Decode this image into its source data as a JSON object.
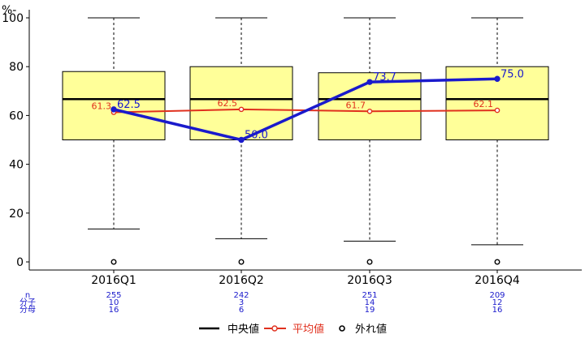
{
  "chart_data": {
    "type": "box",
    "ylabel": "%-",
    "ylim": [
      0,
      100
    ],
    "yticks": [
      0,
      20,
      40,
      60,
      80,
      100
    ],
    "categories": [
      "2016Q1",
      "2016Q2",
      "2016Q3",
      "2016Q4"
    ],
    "boxes": [
      {
        "whisker_low": 13.5,
        "q1": 50,
        "median": 66.7,
        "q3": 78,
        "whisker_high": 100,
        "outliers": [
          0
        ]
      },
      {
        "whisker_low": 9.5,
        "q1": 50,
        "median": 66.7,
        "q3": 80,
        "whisker_high": 100,
        "outliers": [
          0
        ]
      },
      {
        "whisker_low": 8.5,
        "q1": 50,
        "median": 66.7,
        "q3": 77.5,
        "whisker_high": 100,
        "outliers": [
          0
        ]
      },
      {
        "whisker_low": 7,
        "q1": 50,
        "median": 66.7,
        "q3": 80,
        "whisker_high": 100,
        "outliers": [
          0
        ]
      }
    ],
    "mean": {
      "values": [
        61.3,
        62.5,
        61.7,
        62.1
      ],
      "labels": [
        "61.3",
        "62.5",
        "61.7",
        "62.1"
      ],
      "color": "#e0301e"
    },
    "rate": {
      "values": [
        62.5,
        50.0,
        73.7,
        75.0
      ],
      "labels": [
        "62.5",
        "50.0",
        "73.7",
        "75.0"
      ],
      "color": "#1a1acc"
    },
    "stats_rows": [
      {
        "label": "n",
        "values": [
          "255",
          "242",
          "251",
          "209"
        ]
      },
      {
        "label": "分子",
        "values": [
          "10",
          "3",
          "14",
          "12"
        ]
      },
      {
        "label": "分母",
        "values": [
          "16",
          "6",
          "19",
          "16"
        ]
      }
    ],
    "legend": [
      {
        "label": "中央値",
        "color": "#000000",
        "style": "line"
      },
      {
        "label": "平均値",
        "color": "#e0301e",
        "style": "line-point"
      },
      {
        "label": "外れ値",
        "color": "#000000",
        "style": "open-point"
      }
    ],
    "box_fill": "#ffff99",
    "grid": false,
    "legend_position": "bottom"
  }
}
